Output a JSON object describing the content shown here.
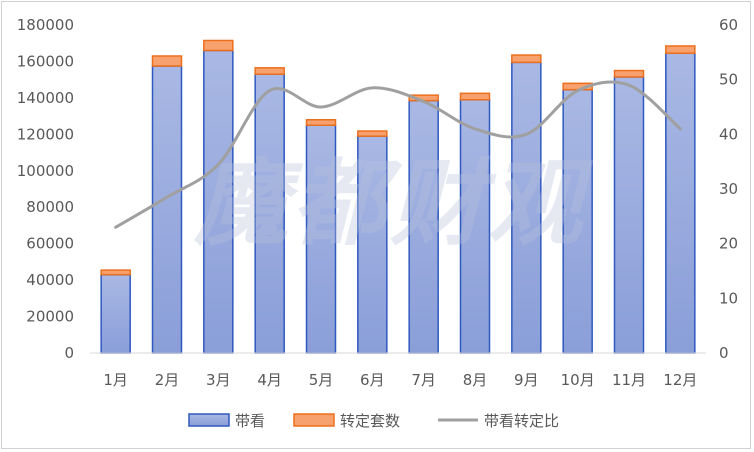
{
  "watermark": "魔都财观",
  "colors": {
    "bar_fill_top": "#a9b8e4",
    "bar_fill_bottom": "#8a9ed8",
    "bar_border": "#2f58c0",
    "cap_fill": "#f7a26e",
    "cap_border": "#ed6f1e",
    "line": "#a0a0a0",
    "grid": "#e0e0e0"
  },
  "chart_data": {
    "type": "bar",
    "categories": [
      "1月",
      "2月",
      "3月",
      "4月",
      "5月",
      "6月",
      "7月",
      "8月",
      "9月",
      "10月",
      "11月",
      "12月"
    ],
    "series": [
      {
        "name": "带看",
        "kind": "bar",
        "axis": "left",
        "values": [
          43000,
          157500,
          166000,
          153000,
          125000,
          119000,
          138500,
          139000,
          159500,
          144500,
          151500,
          164500
        ]
      },
      {
        "name": "转定套数",
        "kind": "bar-stacked",
        "axis": "left",
        "values": [
          2500,
          5500,
          5500,
          3500,
          3000,
          2800,
          3000,
          3500,
          4000,
          3500,
          3500,
          4000
        ]
      },
      {
        "name": "带看转定比",
        "kind": "line",
        "axis": "right",
        "values": [
          23,
          28.5,
          34.5,
          48,
          45,
          48.5,
          46,
          41,
          40,
          48,
          49,
          41
        ]
      }
    ],
    "y_left": {
      "min": 0,
      "max": 180000,
      "step": 20000,
      "ticks": [
        "0",
        "20000",
        "40000",
        "60000",
        "80000",
        "100000",
        "120000",
        "140000",
        "160000",
        "180000"
      ]
    },
    "y_right": {
      "min": 0,
      "max": 60,
      "step": 10,
      "ticks": [
        "0",
        "10",
        "20",
        "30",
        "40",
        "50",
        "60"
      ]
    },
    "legend_position": "bottom",
    "grid": false
  }
}
